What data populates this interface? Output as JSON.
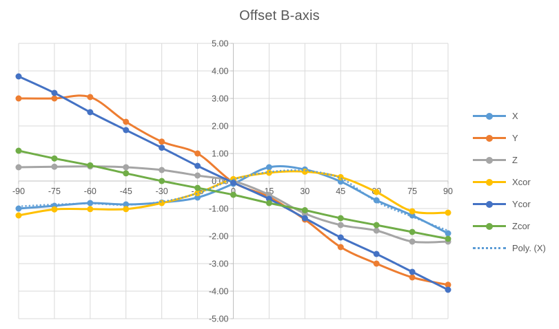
{
  "title": "Offset B-axis",
  "colors": {
    "background": "#FFFFFF",
    "gridline": "#D9D9D9",
    "axis": "#BFBFBF",
    "text": "#595959"
  },
  "chart_data": {
    "type": "line",
    "title": "Offset B-axis",
    "categories": [
      -90,
      -75,
      -60,
      -45,
      -30,
      -15,
      0,
      15,
      30,
      45,
      60,
      75,
      90
    ],
    "x_tick_labels": [
      "-90",
      "-75",
      "-60",
      "-45",
      "-30",
      "-15",
      "0",
      "15",
      "30",
      "45",
      "60",
      "75",
      "90"
    ],
    "y_tick_labels": [
      "5.00",
      "4.00",
      "3.00",
      "2.00",
      "1.00",
      "0.00",
      "-1.00",
      "-2.00",
      "-3.00",
      "-4.00",
      "-5.00"
    ],
    "ylim": [
      -5,
      5
    ],
    "xlabel": "",
    "ylabel": "",
    "grid": true,
    "smooth_lines": true,
    "legend_position": "right",
    "series": [
      {
        "name": "X",
        "color": "#5B9BD5",
        "dash": "solid",
        "markers": true,
        "values": [
          -1.0,
          -0.9,
          -0.8,
          -0.85,
          -0.78,
          -0.6,
          -0.1,
          0.5,
          0.42,
          -0.02,
          -0.7,
          -1.25,
          -1.9
        ]
      },
      {
        "name": "Y",
        "color": "#ED7D31",
        "dash": "solid",
        "markers": true,
        "values": [
          3.0,
          3.0,
          3.05,
          2.15,
          1.43,
          1.0,
          -0.05,
          -0.58,
          -1.4,
          -2.4,
          -3.0,
          -3.5,
          -3.77
        ]
      },
      {
        "name": "Z",
        "color": "#A5A5A5",
        "dash": "solid",
        "markers": true,
        "values": [
          0.5,
          0.52,
          0.53,
          0.5,
          0.4,
          0.2,
          0.0,
          -0.5,
          -1.18,
          -1.6,
          -1.8,
          -2.2,
          -2.2
        ]
      },
      {
        "name": "Xcor",
        "color": "#FFC000",
        "dash": "solid",
        "markers": true,
        "values": [
          -1.25,
          -1.03,
          -1.02,
          -1.02,
          -0.8,
          -0.44,
          0.07,
          0.3,
          0.34,
          0.14,
          -0.4,
          -1.1,
          -1.15
        ]
      },
      {
        "name": "Ycor",
        "color": "#4472C4",
        "dash": "solid",
        "markers": true,
        "values": [
          3.8,
          3.2,
          2.5,
          1.85,
          1.21,
          0.55,
          -0.06,
          -0.65,
          -1.35,
          -2.05,
          -2.65,
          -3.3,
          -3.95
        ]
      },
      {
        "name": "Zcor",
        "color": "#70AD47",
        "dash": "solid",
        "markers": true,
        "values": [
          1.1,
          0.82,
          0.57,
          0.28,
          0.0,
          -0.25,
          -0.5,
          -0.8,
          -1.06,
          -1.35,
          -1.6,
          -1.85,
          -2.1
        ]
      },
      {
        "name": "Poly. (X)",
        "color": "#5B9BD5",
        "dash": "dotted",
        "markers": false,
        "values": [
          -0.92,
          -0.85,
          -0.82,
          -0.87,
          -0.75,
          -0.45,
          0.05,
          0.33,
          0.38,
          0.1,
          -0.75,
          -1.3,
          -1.8
        ]
      }
    ]
  }
}
